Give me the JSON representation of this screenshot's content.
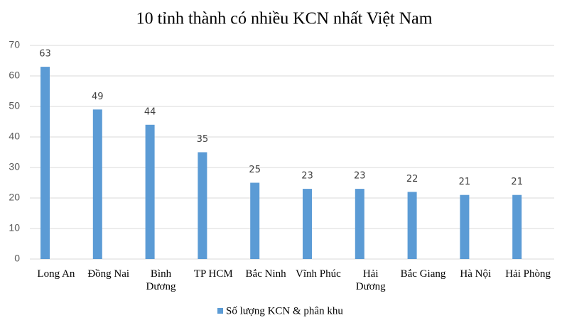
{
  "chart_data": {
    "type": "bar",
    "title": "10 tỉnh thành có nhiều KCN nhất Việt Nam",
    "categories": [
      "Long An",
      "Đồng Nai",
      "Bình\nDương",
      "TP HCM",
      "Bắc Ninh",
      "Vĩnh Phúc",
      "Hải\nDương",
      "Bắc Giang",
      "Hà Nội",
      "Hải Phòng"
    ],
    "series": [
      {
        "name": "Số lượng KCN & phân khu",
        "color": "#5b9bd5",
        "values": [
          63,
          49,
          44,
          35,
          25,
          23,
          23,
          22,
          21,
          21
        ]
      }
    ],
    "ylim": [
      0,
      70
    ],
    "yticks": [
      0,
      10,
      20,
      30,
      40,
      50,
      60,
      70
    ],
    "grid": true,
    "legend": "bottom"
  }
}
